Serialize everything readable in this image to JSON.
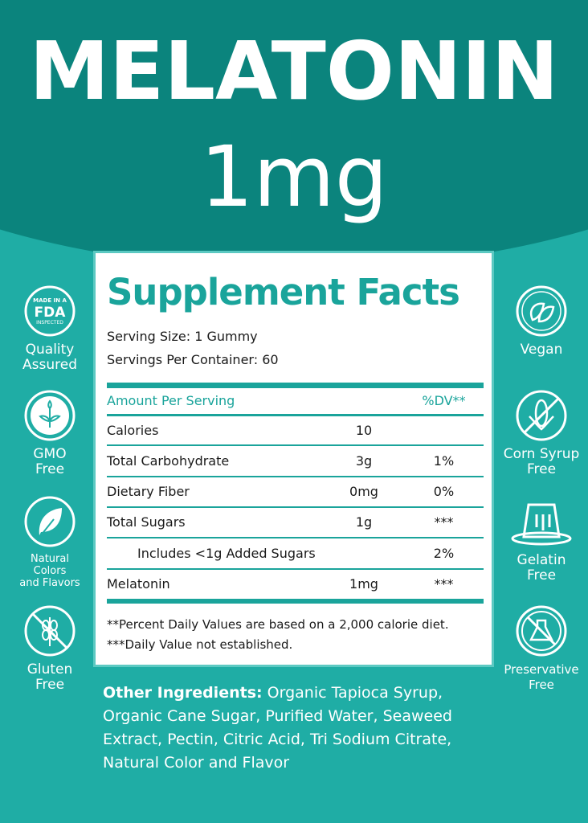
{
  "header": {
    "product": "MELATONIN",
    "dose": "1mg"
  },
  "facts": {
    "title": "Supplement Facts",
    "serving_size_label": "Serving Size:",
    "serving_size": "1 Gummy",
    "servings_label": "Servings Per Container:",
    "servings": "60",
    "col_amount": "Amount Per Serving",
    "col_dv": "%DV**",
    "rows": [
      {
        "name": "Calories",
        "amount": "10",
        "dv": ""
      },
      {
        "name": "Total Carbohydrate",
        "amount": "3g",
        "dv": "1%"
      },
      {
        "name": "Dietary Fiber",
        "amount": "0mg",
        "dv": "0%"
      },
      {
        "name": "Total Sugars",
        "amount": "1g",
        "dv": "***"
      },
      {
        "name": "Includes <1g Added Sugars",
        "amount": "",
        "dv": "2%"
      },
      {
        "name": "Melatonin",
        "amount": "1mg",
        "dv": "***"
      }
    ],
    "footnote1": "**Percent Daily Values are based on a 2,000 calorie diet.",
    "footnote2": "***Daily Value not established."
  },
  "badges_left": [
    {
      "icon": "fda-badge-icon",
      "logo_text": "MADE IN A FDA INSPECTED FACILITY",
      "l1": "Quality",
      "l2": "Assured"
    },
    {
      "icon": "sprout-icon",
      "l1": "GMO",
      "l2": "Free"
    },
    {
      "icon": "leaf-icon",
      "l1": "Natural",
      "l2": "Colors",
      "l3": "and Flavors"
    },
    {
      "icon": "no-wheat-icon",
      "l1": "Gluten",
      "l2": "Free"
    }
  ],
  "badges_right": [
    {
      "icon": "vegan-leaves-icon",
      "l1": "Vegan"
    },
    {
      "icon": "no-corn-icon",
      "l1": "Corn Syrup",
      "l2": "Free"
    },
    {
      "icon": "gelatin-icon",
      "l1": "Gelatin",
      "l2": "Free"
    },
    {
      "icon": "no-flask-icon",
      "l1": "Preservative",
      "l2": "Free"
    }
  ],
  "ingredients": {
    "label": "Other Ingredients:",
    "text": " Organic Tapioca Syrup, Organic Cane Sugar, Purified Water, Seaweed Extract, Pectin, Citric Acid, Tri Sodium Citrate, Natural Color and Flavor"
  },
  "colors": {
    "dark_teal": "#0b847d",
    "teal": "#1fada5",
    "accent": "#1aa49b"
  }
}
